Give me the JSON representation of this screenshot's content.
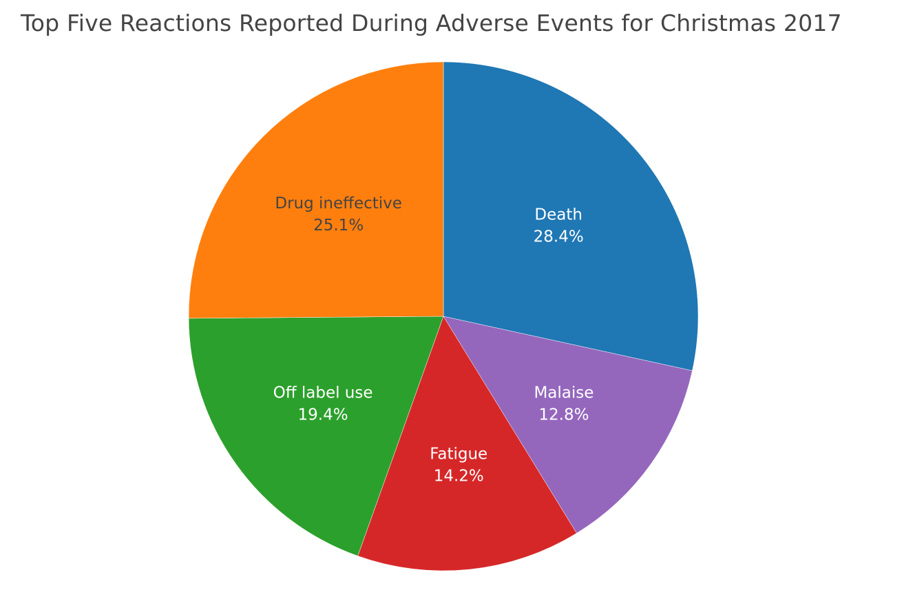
{
  "chart_data": {
    "type": "pie",
    "title": "Top Five Reactions Reported During Adverse Events for Christmas 2017",
    "direction": "clockwise",
    "start": "top",
    "slices": [
      {
        "label": "Death",
        "percent": 28.4,
        "percent_text": "28.4%",
        "color": "#1f77b4",
        "text_color": "#ffffff"
      },
      {
        "label": "Malaise",
        "percent": 12.8,
        "percent_text": "12.8%",
        "color": "#9467bd",
        "text_color": "#ffffff"
      },
      {
        "label": "Fatigue",
        "percent": 14.2,
        "percent_text": "14.2%",
        "color": "#d62728",
        "text_color": "#ffffff"
      },
      {
        "label": "Off label use",
        "percent": 19.4,
        "percent_text": "19.4%",
        "color": "#2ca02c",
        "text_color": "#ffffff"
      },
      {
        "label": "Drug ineffective",
        "percent": 25.1,
        "percent_text": "25.1%",
        "color": "#ff7f0e",
        "text_color": "#444444"
      }
    ]
  }
}
